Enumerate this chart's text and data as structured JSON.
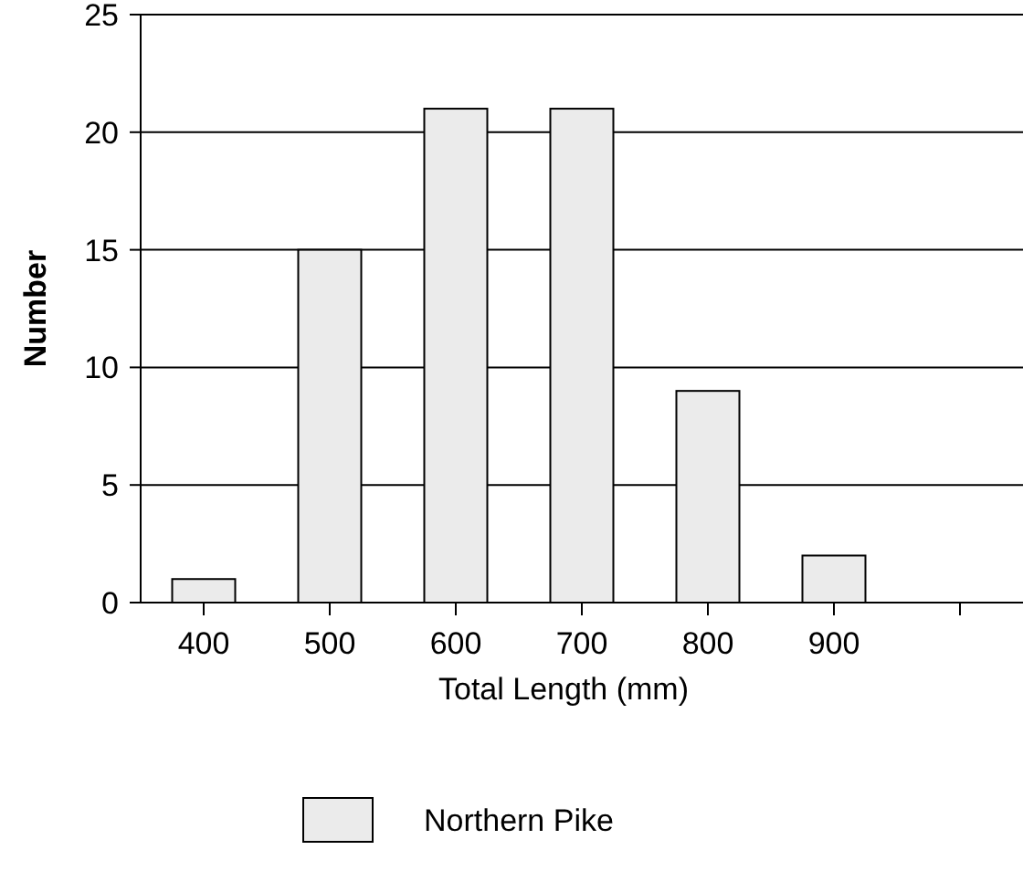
{
  "chart_data": {
    "type": "bar",
    "xlabel": "Total Length (mm)",
    "ylabel": "Number",
    "categories": [
      "400",
      "500",
      "600",
      "700",
      "800",
      "900",
      null
    ],
    "series": [
      {
        "name": "Northern Pike",
        "color": "#ebebeb",
        "values": [
          1,
          15,
          21,
          21,
          9,
          2,
          null
        ]
      }
    ],
    "ylim": [
      0,
      25
    ],
    "yticks": [
      0,
      5,
      10,
      15,
      20,
      25
    ],
    "grid": "y",
    "legend": "bottom"
  }
}
